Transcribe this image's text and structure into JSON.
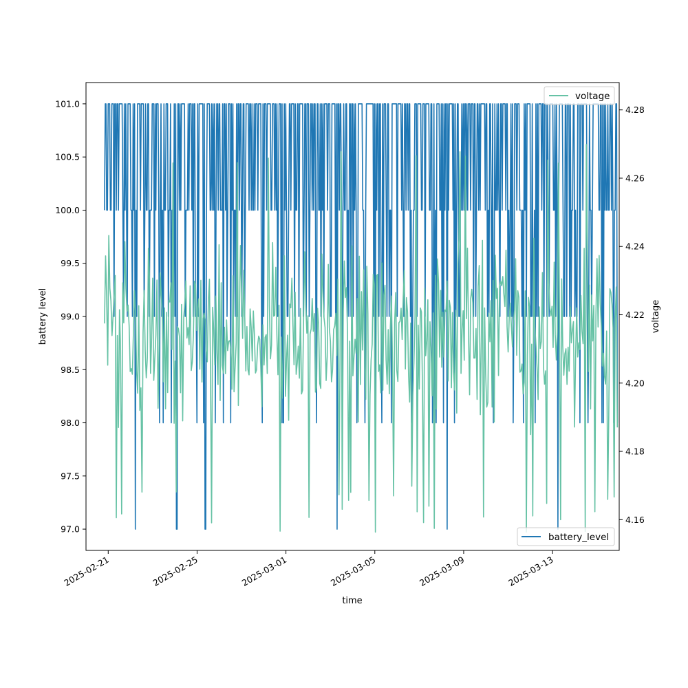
{
  "chart_data": {
    "type": "line",
    "title": "",
    "xlabel": "time",
    "ylabel_left": "battery level",
    "ylabel_right": "voltage",
    "x_tick_labels": [
      "2025-02-21",
      "2025-02-25",
      "2025-03-01",
      "2025-03-05",
      "2025-03-09",
      "2025-03-13"
    ],
    "x_range": [
      "2025-02-20",
      "2025-03-16"
    ],
    "x_data_range": [
      "2025-02-20T20:00",
      "2025-03-15T22:00"
    ],
    "y_left_ticks": [
      "97.0",
      "97.5",
      "98.0",
      "98.5",
      "99.0",
      "99.5",
      "100.0",
      "100.5",
      "101.0"
    ],
    "y_left_range": [
      96.8,
      101.2
    ],
    "y_right_ticks": [
      "4.16",
      "4.18",
      "4.20",
      "4.22",
      "4.24",
      "4.26",
      "4.28"
    ],
    "y_right_range": [
      4.151,
      4.288
    ],
    "grid": false,
    "series": [
      {
        "name": "battery_level",
        "axis": "left",
        "color": "#1f77b4",
        "levels": [
          97,
          98,
          99,
          100,
          101
        ],
        "level_weights": [
          0.01,
          0.03,
          0.12,
          0.28,
          0.56
        ],
        "dips_to_97": [
          "2025-02-22T05:00",
          "2025-02-24T02:00",
          "2025-02-25T09:00",
          "2025-03-03T07:00",
          "2025-03-08T06:00",
          "2025-03-13T06:00"
        ],
        "legend_position": "lower-right"
      },
      {
        "name": "voltage",
        "axis": "right",
        "color": "#66c2a5",
        "typical_range": [
          4.17,
          4.26
        ],
        "min": 4.156,
        "max": 4.27,
        "legend_position": "upper-right"
      }
    ]
  }
}
